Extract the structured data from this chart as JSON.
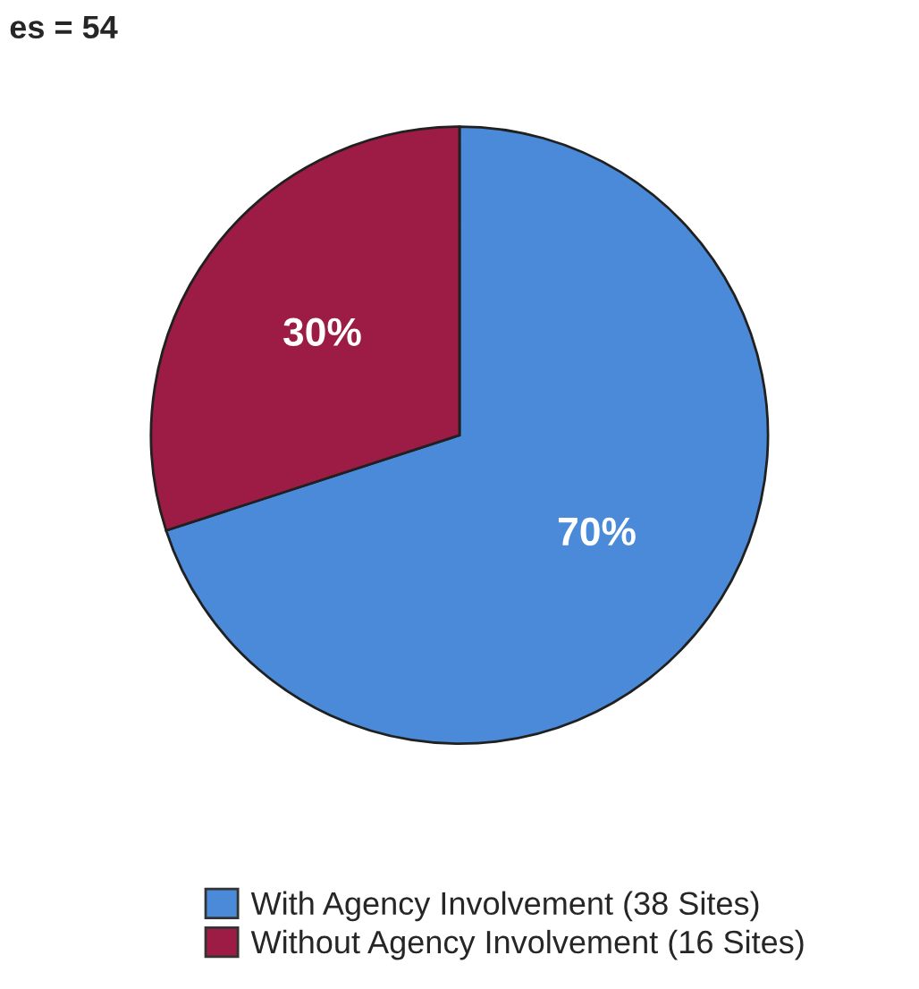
{
  "chart_data": {
    "type": "pie",
    "title": "es = 54",
    "categories": [
      "With Agency Involvement (38 Sites)",
      "Without Agency Involvement (16 Sites)"
    ],
    "values": [
      70,
      30
    ],
    "value_labels": [
      "70%",
      "30%"
    ],
    "colors": [
      "#4a8ad8",
      "#9c1c46"
    ],
    "legend": "bottom"
  }
}
